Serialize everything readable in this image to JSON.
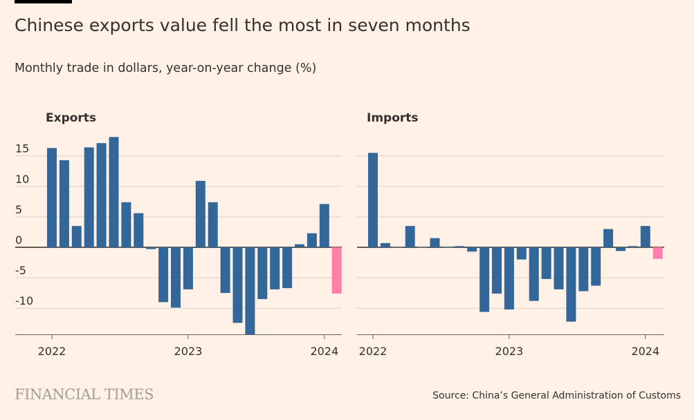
{
  "title": "Chinese exports value fell the most in seven months",
  "subtitle": "Monthly trade in dollars, year-on-year change (%)",
  "source": "Source: China’s General Administration of Customs",
  "logo": "FINANCIAL TIMES",
  "colors": {
    "background": "#fff1e5",
    "bar": "#336699",
    "highlight": "#ff7faa",
    "gridline": "#d9d0c8",
    "zero": "#000000"
  },
  "chart_data": [
    {
      "type": "bar",
      "title": "Exports",
      "ylim": [
        -14.5,
        18
      ],
      "yticks": [
        15,
        10,
        5,
        0,
        -5,
        -10
      ],
      "ytick_labels": [
        "15",
        "10",
        "5",
        "0",
        "-5",
        "-10"
      ],
      "xticks": [
        {
          "label": "2022",
          "index": 0
        },
        {
          "label": "2023",
          "index": 11
        },
        {
          "label": "2024",
          "index": 22
        }
      ],
      "categories": [
        "2022-01",
        "2022-03",
        "2022-04",
        "2022-05",
        "2022-06",
        "2022-07",
        "2022-08",
        "2022-09",
        "2022-10",
        "2022-11",
        "2022-12",
        "2023-01",
        "2023-03",
        "2023-04",
        "2023-05",
        "2023-06",
        "2023-07",
        "2023-08",
        "2023-09",
        "2023-10",
        "2023-11",
        "2023-12",
        "2024-01",
        "2024-02"
      ],
      "values": [
        16.3,
        14.3,
        3.5,
        16.4,
        17.1,
        18.1,
        7.4,
        5.6,
        -0.3,
        -9.0,
        -9.9,
        -6.9,
        10.9,
        7.4,
        -7.5,
        -12.4,
        -14.3,
        -8.5,
        -6.9,
        -6.7,
        0.5,
        2.3,
        7.1,
        -7.6
      ],
      "highlight_index": 23
    },
    {
      "type": "bar",
      "title": "Imports",
      "ylim": [
        -14.5,
        18
      ],
      "yticks": [
        15,
        10,
        5,
        0,
        -5,
        -10
      ],
      "xticks": [
        {
          "label": "2022",
          "index": 0
        },
        {
          "label": "2023",
          "index": 11
        },
        {
          "label": "2024",
          "index": 22
        }
      ],
      "categories": [
        "2022-01",
        "2022-03",
        "2022-04",
        "2022-05",
        "2022-06",
        "2022-07",
        "2022-08",
        "2022-09",
        "2022-10",
        "2022-11",
        "2022-12",
        "2023-01",
        "2023-03",
        "2023-04",
        "2023-05",
        "2023-06",
        "2023-07",
        "2023-08",
        "2023-09",
        "2023-10",
        "2023-11",
        "2023-12",
        "2024-01",
        "2024-02"
      ],
      "values": [
        15.5,
        0.7,
        0.0,
        3.5,
        0.0,
        1.5,
        0.0,
        0.2,
        -0.7,
        -10.6,
        -7.6,
        -10.2,
        -2.0,
        -8.8,
        -5.2,
        -6.9,
        -12.2,
        -7.2,
        -6.3,
        3.0,
        -0.6,
        0.2,
        3.5,
        -1.9
      ],
      "highlight_index": 23
    }
  ]
}
